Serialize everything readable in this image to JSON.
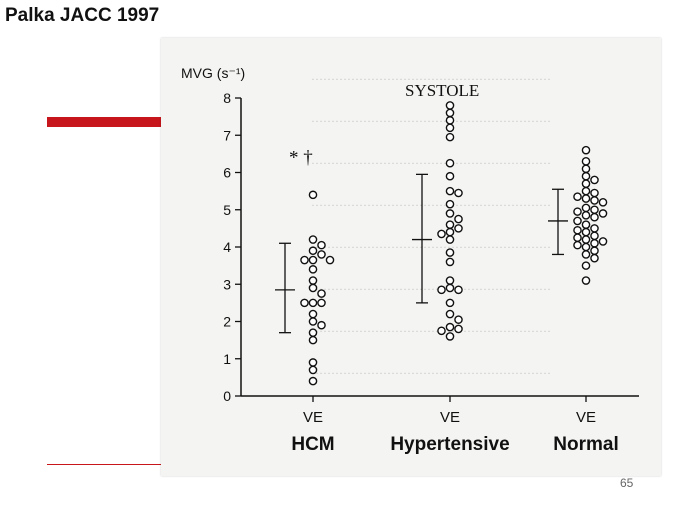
{
  "slide": {
    "title": "Palka JACC 1997",
    "page_number": "65",
    "accent_color": "#c8161d"
  },
  "chart_data": {
    "type": "scatter",
    "title": "SYSTOLE",
    "ylabel": "MVG (s⁻¹)",
    "ylim": [
      0,
      8
    ],
    "yticks": [
      "0",
      "1",
      "2",
      "3",
      "4",
      "5",
      "6",
      "7",
      "8"
    ],
    "categories": [
      "HCM",
      "Hypertensive",
      "Normal"
    ],
    "xlabel_each": "VE",
    "grid": false,
    "annotation": {
      "text": "* †",
      "category": "HCM",
      "y": 6.4
    },
    "groups": [
      {
        "name": "HCM",
        "mean": 2.85,
        "sd_low": 1.7,
        "sd_high": 4.1,
        "points": [
          5.4,
          4.2,
          4.05,
          3.9,
          3.8,
          3.65,
          3.65,
          3.65,
          3.4,
          3.1,
          2.9,
          2.75,
          2.5,
          2.5,
          2.5,
          2.2,
          2.0,
          1.9,
          1.7,
          1.5,
          0.9,
          0.7,
          0.4
        ]
      },
      {
        "name": "Hypertensive",
        "mean": 4.2,
        "sd_low": 2.5,
        "sd_high": 5.95,
        "points": [
          7.8,
          7.6,
          7.4,
          7.2,
          6.95,
          6.25,
          5.9,
          5.5,
          5.45,
          5.15,
          4.9,
          4.75,
          4.6,
          4.5,
          4.4,
          4.35,
          4.2,
          3.85,
          3.6,
          3.1,
          2.9,
          2.85,
          2.85,
          2.5,
          2.2,
          2.05,
          1.85,
          1.8,
          1.75,
          1.6
        ]
      },
      {
        "name": "Normal",
        "mean": 4.7,
        "sd_low": 3.8,
        "sd_high": 5.55,
        "points": [
          6.6,
          6.3,
          6.1,
          5.9,
          5.8,
          5.7,
          5.5,
          5.45,
          5.35,
          5.3,
          5.25,
          5.2,
          5.05,
          5.0,
          4.95,
          4.9,
          4.85,
          4.8,
          4.7,
          4.6,
          4.5,
          4.45,
          4.4,
          4.3,
          4.25,
          4.2,
          4.15,
          4.1,
          4.05,
          4.0,
          3.9,
          3.8,
          3.7,
          3.5,
          3.1
        ]
      }
    ]
  }
}
